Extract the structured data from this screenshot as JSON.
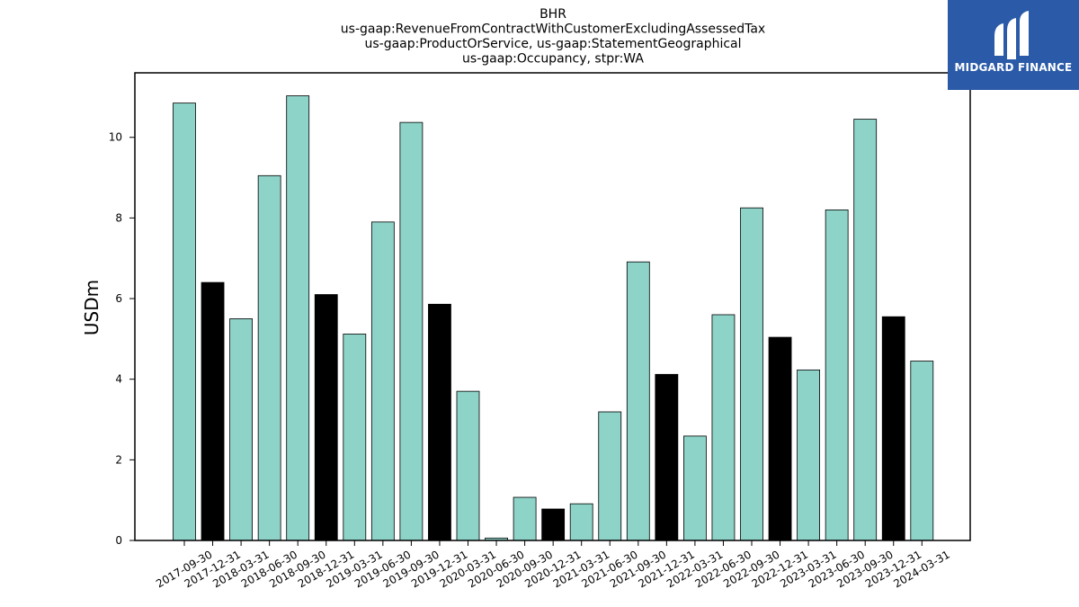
{
  "chart_data": {
    "type": "bar",
    "title_lines": [
      "BHR",
      "us-gaap:RevenueFromContractWithCustomerExcludingAssessedTax",
      "us-gaap:ProductOrService, us-gaap:StatementGeographical",
      "us-gaap:Occupancy, stpr:WA"
    ],
    "xlabel": "",
    "ylabel": "USDm",
    "ylim": [
      0,
      11.6
    ],
    "yticks": [
      0,
      2,
      4,
      6,
      8,
      10
    ],
    "grid": false,
    "colors": {
      "quarter": "#8dd3c7",
      "year_end": "#000000",
      "edge": "#000000"
    },
    "categories": [
      "2017-09-30",
      "2017-12-31",
      "2018-03-31",
      "2018-06-30",
      "2018-09-30",
      "2018-12-31",
      "2019-03-31",
      "2019-06-30",
      "2019-09-30",
      "2019-12-31",
      "2020-03-31",
      "2020-06-30",
      "2020-09-30",
      "2020-12-31",
      "2021-03-31",
      "2021-06-30",
      "2021-09-30",
      "2021-12-31",
      "2022-03-31",
      "2022-06-30",
      "2022-09-30",
      "2022-12-31",
      "2023-03-31",
      "2023-06-30",
      "2023-09-30",
      "2023-12-31",
      "2024-03-31"
    ],
    "values": [
      10.85,
      6.4,
      5.5,
      9.05,
      11.03,
      6.1,
      5.12,
      7.9,
      10.37,
      5.86,
      3.7,
      0.06,
      1.07,
      0.78,
      0.91,
      3.19,
      6.91,
      4.12,
      2.59,
      5.6,
      8.25,
      5.04,
      4.23,
      8.2,
      10.45,
      5.55,
      4.45
    ],
    "highlight": [
      false,
      true,
      false,
      false,
      false,
      true,
      false,
      false,
      false,
      true,
      false,
      false,
      false,
      true,
      false,
      false,
      false,
      true,
      false,
      false,
      false,
      true,
      false,
      false,
      false,
      true,
      false
    ]
  },
  "logo": {
    "text": "MIDGARD FINANCE",
    "background": "#2a5aa8",
    "icon": "midgard-logo-icon"
  }
}
